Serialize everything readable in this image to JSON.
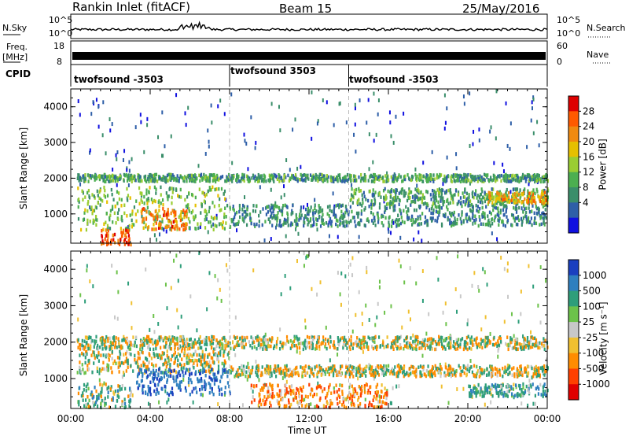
{
  "header": {
    "station": "Rankin Inlet (fitACF)",
    "beam": "Beam 15",
    "date": "25/May/2016"
  },
  "top_panels": {
    "nsky_label": "N.Sky",
    "nsky_top_tick": "10^5",
    "nsky_bottom_tick": "10^0",
    "nsearch_label": "N.Search",
    "nsearch_top_tick": "10^5",
    "nsearch_bottom_tick": "10^0",
    "freq_label": "Freq.",
    "freq_unit": "[MHz]",
    "freq_top_tick": "18",
    "freq_bottom_tick": "8",
    "nave_label": "Nave",
    "nave_top_tick": "60",
    "nave_bottom_tick": "0",
    "cpid_label": "CPID",
    "cpid_segments": [
      {
        "label": "twofsound -3503",
        "start_hour": 0,
        "end_hour": 8
      },
      {
        "label": "twofsound 3503",
        "start_hour": 8,
        "end_hour": 14
      },
      {
        "label": "twofsound -3503",
        "start_hour": 14,
        "end_hour": 24
      }
    ]
  },
  "power_colorbar": {
    "label": "Power [dB]",
    "ticks": [
      "28",
      "24",
      "20",
      "16",
      "12",
      "8",
      "4"
    ],
    "colors": [
      "#dd0000",
      "#ff5a00",
      "#f08a10",
      "#e6c000",
      "#9acd32",
      "#4caf50",
      "#3a8e6a",
      "#2e5fa8",
      "#1010e0"
    ]
  },
  "velocity_colorbar": {
    "label": "Velocity [m s⁻¹]",
    "ticks": [
      "1000",
      "500",
      "100",
      "25",
      "-25",
      "-100",
      "-500",
      "-1000"
    ],
    "colors": [
      "#1a3fbf",
      "#2f7fbf",
      "#2e9e7a",
      "#6cc24a",
      "#c8c8c8",
      "#f0c030",
      "#ff8c00",
      "#ff4000",
      "#e00000"
    ]
  },
  "chart_data": [
    {
      "type": "heatmap",
      "title": "Rankin Inlet (fitACF) Beam 15 25/May/2016",
      "quantity": "Power [dB]",
      "ylabel": "Slant Range [km]",
      "xlabel": "Time UT",
      "xticks": [
        "00:00",
        "04:00",
        "08:00",
        "12:00",
        "16:00",
        "20:00",
        "00:00"
      ],
      "yticks": [
        "1000",
        "2000",
        "3000",
        "4000"
      ],
      "ylim": [
        180,
        4500
      ],
      "xlim_hours": [
        0,
        24
      ],
      "clim": [
        0,
        32
      ],
      "regions": [
        {
          "start_hour": 0.3,
          "end_hour": 24,
          "range_min": 1950,
          "range_max": 2150,
          "level": 10
        },
        {
          "start_hour": 0.3,
          "end_hour": 8,
          "range_min": 600,
          "range_max": 1800,
          "level": 14
        },
        {
          "start_hour": 3.5,
          "end_hour": 5.8,
          "range_min": 600,
          "range_max": 1200,
          "level": 26
        },
        {
          "start_hour": 1.5,
          "end_hour": 3,
          "range_min": 180,
          "range_max": 600,
          "level": 28
        },
        {
          "start_hour": 8,
          "end_hour": 24,
          "range_min": 700,
          "range_max": 1300,
          "level": 8
        },
        {
          "start_hour": 14,
          "end_hour": 24,
          "range_min": 1300,
          "range_max": 1750,
          "level": 10
        },
        {
          "start_hour": 21,
          "end_hour": 24,
          "range_min": 1350,
          "range_max": 1650,
          "level": 22
        }
      ]
    },
    {
      "type": "heatmap",
      "quantity": "Velocity [m s⁻¹]",
      "ylabel": "Slant Range [km]",
      "xlabel": "Time UT",
      "xticks": [
        "00:00",
        "04:00",
        "08:00",
        "12:00",
        "16:00",
        "20:00",
        "00:00"
      ],
      "yticks": [
        "1000",
        "2000",
        "3000",
        "4000"
      ],
      "ylim": [
        180,
        4500
      ],
      "xlim_hours": [
        0,
        24
      ],
      "clim": [
        -1000,
        1000
      ],
      "regions": [
        {
          "start_hour": 0.3,
          "end_hour": 24,
          "range_min": 1850,
          "range_max": 2200,
          "level": 0
        },
        {
          "start_hour": 0.3,
          "end_hour": 8,
          "range_min": 1200,
          "range_max": 1800,
          "level": 0
        },
        {
          "start_hour": 3.2,
          "end_hour": 8,
          "range_min": 600,
          "range_max": 1300,
          "level": 700
        },
        {
          "start_hour": 0.3,
          "end_hour": 3,
          "range_min": 250,
          "range_max": 900,
          "level": 100
        },
        {
          "start_hour": 8,
          "end_hour": 24,
          "range_min": 1100,
          "range_max": 1400,
          "level": 0
        },
        {
          "start_hour": 9,
          "end_hour": 16,
          "range_min": 250,
          "range_max": 900,
          "level": -200
        },
        {
          "start_hour": 20,
          "end_hour": 24,
          "range_min": 550,
          "range_max": 900,
          "level": 200
        }
      ]
    }
  ]
}
